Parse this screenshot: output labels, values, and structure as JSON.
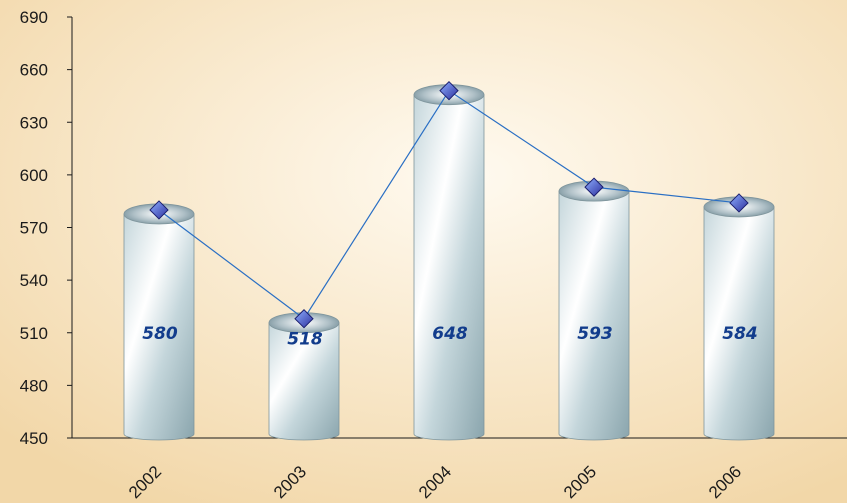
{
  "chart_data": {
    "type": "bar",
    "categories": [
      "2002",
      "2003",
      "2004",
      "2005",
      "2006"
    ],
    "values": [
      580,
      518,
      648,
      593,
      584
    ],
    "data_labels": [
      "580",
      "518",
      "648",
      "593",
      "584"
    ],
    "ylim": [
      450,
      690
    ],
    "yticks": [
      "450",
      "480",
      "510",
      "540",
      "570",
      "600",
      "630",
      "660",
      "690"
    ],
    "overlay_line": true,
    "grid": false,
    "colors": {
      "background_center": "#fffaf0",
      "background_edge": "#f2d7a8",
      "bar_light": "#ffffff",
      "bar_mid": "#c4d6db",
      "bar_dark": "#8aa5ad",
      "label_color": "#123c8c",
      "line_color": "#2a6fc4",
      "marker_color": "#2d2f9e"
    }
  }
}
